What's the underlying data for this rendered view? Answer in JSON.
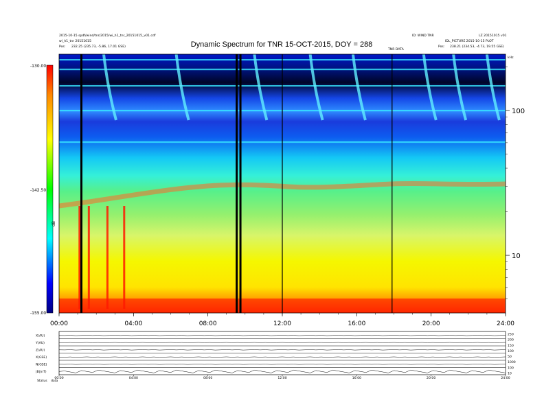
{
  "header": {
    "left_line1": "2015-10-15 spdf/wind/tnr/2015/wi_h1_tnr_20151015_v01.cdf",
    "left_line2": "wi_h1_tnr 20151015",
    "left_line3_label": "Pos:",
    "left_line3_value": "232.25 (235.73, -5.86, 17.01 GSE)",
    "right_top_a": "ID: WIND TNR",
    "right_top_b": "LZ 20151015 v01",
    "right_line2": "IDL_PICTURE 2015-10-15 PLOT",
    "right_line3_label": "Pos:",
    "right_line3_value": "238.21 (234.53, -4.73, 19.55 GSE)",
    "right_corner": "kHz",
    "note": "TNR DATA",
    "colorbar_unit": "dB"
  },
  "chart_data": [
    {
      "type": "heatmap",
      "title": "Dynamic Spectrum for TNR 15-OCT-2015, DOY = 288",
      "xlabel": "",
      "ylabel": "",
      "x_ticks": [
        "00:00",
        "04:00",
        "08:00",
        "12:00",
        "16:00",
        "20:00",
        "24:00"
      ],
      "x_range_hours": [
        0,
        24
      ],
      "y_scale": "log",
      "y_ticks": [
        "10",
        "100"
      ],
      "y_range_khz": [
        4,
        245
      ],
      "colorbar": {
        "labels": [
          "-130.00",
          "-142.50",
          "-155.00"
        ],
        "range": [
          -155.0,
          -130.0
        ],
        "colors": [
          "#ff0000",
          "#ff8800",
          "#ffff00",
          "#00ff00",
          "#00ffff",
          "#0000ff",
          "#000080"
        ]
      },
      "bands": [
        {
          "freq_khz": 5,
          "level": "red"
        },
        {
          "freq_khz": 9,
          "level": "yellow"
        },
        {
          "freq_khz": 25,
          "level": "green"
        },
        {
          "freq_khz": 55,
          "level": "cyan"
        },
        {
          "freq_khz": 100,
          "level": "blue"
        },
        {
          "freq_khz": 180,
          "level": "navy"
        }
      ],
      "data_gaps_hours": [
        1.2,
        9.55,
        9.75,
        12.0,
        17.9
      ],
      "bursts_hours": [
        2.4,
        6.3,
        10.5,
        13.5,
        15.8,
        19.6,
        21.2,
        23.0
      ]
    },
    {
      "type": "line",
      "panels": [
        "X(AU)",
        "Y(AU)",
        "Z(AU)",
        "X(GSE)",
        "N(GSE)",
        "|B|(nT)"
      ],
      "right_scales": [
        "250",
        "200",
        "150",
        "100",
        "50",
        "1000",
        "100",
        "10"
      ],
      "x_ticks": [
        "00:00",
        "04:00",
        "08:00",
        "12:00",
        "16:00",
        "20:00",
        "24:00"
      ],
      "footer_label": "Status",
      "footer_value": "data"
    }
  ]
}
